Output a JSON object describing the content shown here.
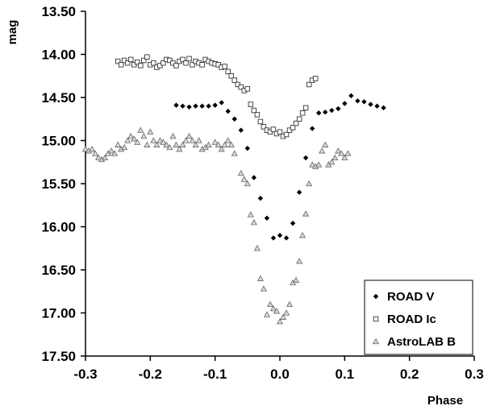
{
  "chart_data": {
    "type": "scatter",
    "title": "",
    "xlabel": "Phase",
    "ylabel": "mag",
    "xlim": [
      -0.3,
      0.3
    ],
    "ylim": [
      13.5,
      17.5
    ],
    "y_inverted": true,
    "x_ticks": [
      "-0.3",
      "-0.2",
      "-0.1",
      "0.0",
      "0.1",
      "0.2",
      "0.3"
    ],
    "y_ticks": [
      "13.50",
      "14.00",
      "14.50",
      "15.00",
      "15.50",
      "16.00",
      "16.50",
      "17.00",
      "17.50"
    ],
    "grid": false,
    "legend_position": "bottom-right",
    "series": [
      {
        "name": "ROAD V",
        "marker": "filled-diamond",
        "color": "#000000",
        "points": [
          [
            -0.16,
            14.59
          ],
          [
            -0.15,
            14.6
          ],
          [
            -0.14,
            14.61
          ],
          [
            -0.13,
            14.6
          ],
          [
            -0.12,
            14.6
          ],
          [
            -0.11,
            14.6
          ],
          [
            -0.1,
            14.59
          ],
          [
            -0.09,
            14.56
          ],
          [
            -0.08,
            14.66
          ],
          [
            -0.07,
            14.75
          ],
          [
            -0.06,
            14.88
          ],
          [
            -0.05,
            15.09
          ],
          [
            -0.04,
            15.43
          ],
          [
            -0.03,
            15.67
          ],
          [
            -0.02,
            15.9
          ],
          [
            -0.01,
            16.13
          ],
          [
            0.0,
            16.1
          ],
          [
            0.01,
            16.13
          ],
          [
            0.02,
            15.96
          ],
          [
            0.03,
            15.6
          ],
          [
            0.04,
            15.2
          ],
          [
            0.05,
            14.86
          ],
          [
            0.06,
            14.68
          ],
          [
            0.07,
            14.67
          ],
          [
            0.08,
            14.65
          ],
          [
            0.09,
            14.63
          ],
          [
            0.1,
            14.57
          ],
          [
            0.11,
            14.48
          ],
          [
            0.12,
            14.54
          ],
          [
            0.13,
            14.55
          ],
          [
            0.14,
            14.58
          ],
          [
            0.15,
            14.6
          ],
          [
            0.16,
            14.62
          ]
        ]
      },
      {
        "name": "ROAD Ic",
        "marker": "open-square",
        "color": "#000000",
        "points": [
          [
            -0.25,
            14.08
          ],
          [
            -0.245,
            14.12
          ],
          [
            -0.24,
            14.07
          ],
          [
            -0.235,
            14.1
          ],
          [
            -0.23,
            14.06
          ],
          [
            -0.225,
            14.12
          ],
          [
            -0.22,
            14.09
          ],
          [
            -0.215,
            14.13
          ],
          [
            -0.21,
            14.07
          ],
          [
            -0.205,
            14.03
          ],
          [
            -0.2,
            14.12
          ],
          [
            -0.195,
            14.1
          ],
          [
            -0.19,
            14.15
          ],
          [
            -0.185,
            14.13
          ],
          [
            -0.18,
            14.1
          ],
          [
            -0.175,
            14.06
          ],
          [
            -0.17,
            14.07
          ],
          [
            -0.165,
            14.1
          ],
          [
            -0.16,
            14.13
          ],
          [
            -0.155,
            14.08
          ],
          [
            -0.15,
            14.06
          ],
          [
            -0.145,
            14.1
          ],
          [
            -0.14,
            14.05
          ],
          [
            -0.135,
            14.12
          ],
          [
            -0.13,
            14.08
          ],
          [
            -0.125,
            14.1
          ],
          [
            -0.12,
            14.12
          ],
          [
            -0.115,
            14.06
          ],
          [
            -0.11,
            14.08
          ],
          [
            -0.105,
            14.1
          ],
          [
            -0.1,
            14.11
          ],
          [
            -0.095,
            14.12
          ],
          [
            -0.09,
            14.15
          ],
          [
            -0.085,
            14.14
          ],
          [
            -0.08,
            14.2
          ],
          [
            -0.075,
            14.25
          ],
          [
            -0.07,
            14.3
          ],
          [
            -0.065,
            14.35
          ],
          [
            -0.06,
            14.38
          ],
          [
            -0.055,
            14.42
          ],
          [
            -0.05,
            14.4
          ],
          [
            -0.045,
            14.58
          ],
          [
            -0.04,
            14.65
          ],
          [
            -0.035,
            14.7
          ],
          [
            -0.03,
            14.78
          ],
          [
            -0.025,
            14.84
          ],
          [
            -0.02,
            14.88
          ],
          [
            -0.015,
            14.9
          ],
          [
            -0.01,
            14.87
          ],
          [
            -0.005,
            14.92
          ],
          [
            0.0,
            14.9
          ],
          [
            0.005,
            14.95
          ],
          [
            0.01,
            14.93
          ],
          [
            0.015,
            14.88
          ],
          [
            0.02,
            14.85
          ],
          [
            0.025,
            14.8
          ],
          [
            0.03,
            14.75
          ],
          [
            0.035,
            14.68
          ],
          [
            0.04,
            14.62
          ],
          [
            0.045,
            14.35
          ],
          [
            0.05,
            14.3
          ],
          [
            0.055,
            14.28
          ]
        ]
      },
      {
        "name": "AstroLAB B",
        "marker": "open-triangle",
        "color": "#808080",
        "points": [
          [
            -0.3,
            15.1
          ],
          [
            -0.295,
            15.12
          ],
          [
            -0.29,
            15.1
          ],
          [
            -0.285,
            15.15
          ],
          [
            -0.28,
            15.2
          ],
          [
            -0.275,
            15.22
          ],
          [
            -0.27,
            15.2
          ],
          [
            -0.265,
            15.15
          ],
          [
            -0.26,
            15.12
          ],
          [
            -0.255,
            15.15
          ],
          [
            -0.25,
            15.05
          ],
          [
            -0.245,
            15.1
          ],
          [
            -0.24,
            15.08
          ],
          [
            -0.235,
            15.0
          ],
          [
            -0.23,
            14.95
          ],
          [
            -0.225,
            14.98
          ],
          [
            -0.22,
            15.02
          ],
          [
            -0.215,
            14.88
          ],
          [
            -0.21,
            14.95
          ],
          [
            -0.205,
            15.05
          ],
          [
            -0.2,
            14.9
          ],
          [
            -0.195,
            15.0
          ],
          [
            -0.19,
            15.05
          ],
          [
            -0.185,
            15.0
          ],
          [
            -0.18,
            15.02
          ],
          [
            -0.175,
            15.05
          ],
          [
            -0.17,
            15.08
          ],
          [
            -0.165,
            14.95
          ],
          [
            -0.16,
            15.05
          ],
          [
            -0.155,
            15.1
          ],
          [
            -0.15,
            15.05
          ],
          [
            -0.145,
            15.0
          ],
          [
            -0.14,
            14.95
          ],
          [
            -0.135,
            15.0
          ],
          [
            -0.13,
            15.05
          ],
          [
            -0.125,
            15.0
          ],
          [
            -0.12,
            15.1
          ],
          [
            -0.115,
            15.08
          ],
          [
            -0.11,
            15.05
          ],
          [
            -0.1,
            15.02
          ],
          [
            -0.095,
            15.05
          ],
          [
            -0.09,
            15.1
          ],
          [
            -0.085,
            15.05
          ],
          [
            -0.08,
            15.0
          ],
          [
            -0.075,
            15.05
          ],
          [
            -0.07,
            15.15
          ],
          [
            -0.06,
            15.38
          ],
          [
            -0.055,
            15.45
          ],
          [
            -0.05,
            15.5
          ],
          [
            -0.045,
            15.86
          ],
          [
            -0.04,
            15.95
          ],
          [
            -0.035,
            16.25
          ],
          [
            -0.03,
            16.6
          ],
          [
            -0.025,
            16.72
          ],
          [
            -0.02,
            17.02
          ],
          [
            -0.015,
            16.9
          ],
          [
            -0.01,
            16.95
          ],
          [
            -0.005,
            16.98
          ],
          [
            0.0,
            17.1
          ],
          [
            0.005,
            17.05
          ],
          [
            0.01,
            17.0
          ],
          [
            0.015,
            16.9
          ],
          [
            0.02,
            16.65
          ],
          [
            0.025,
            16.62
          ],
          [
            0.03,
            16.4
          ],
          [
            0.035,
            16.1
          ],
          [
            0.04,
            15.85
          ],
          [
            0.045,
            15.5
          ],
          [
            0.05,
            15.28
          ],
          [
            0.055,
            15.3
          ],
          [
            0.06,
            15.28
          ],
          [
            0.065,
            15.12
          ],
          [
            0.07,
            15.05
          ],
          [
            0.075,
            15.28
          ],
          [
            0.08,
            15.25
          ],
          [
            0.085,
            15.2
          ],
          [
            0.09,
            15.12
          ],
          [
            0.095,
            15.15
          ],
          [
            0.1,
            15.2
          ],
          [
            0.105,
            15.15
          ]
        ]
      }
    ]
  }
}
